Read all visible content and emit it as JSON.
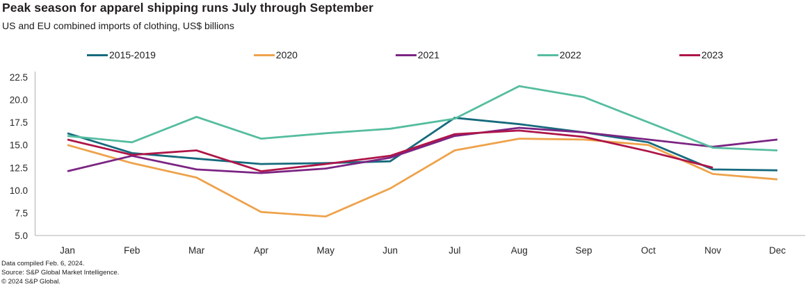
{
  "header": {
    "title": "Peak season for apparel shipping runs July through September",
    "subtitle": "US and EU combined imports of clothing, US$ billions"
  },
  "footer": {
    "line1": "Data compiled Feb. 6, 2024.",
    "line2": "Source: S&P Global Market Intelligence.",
    "line3": "© 2024 S&P Global."
  },
  "chart_data": {
    "type": "line",
    "title": "Peak season for apparel shipping runs July through September",
    "subtitle": "US and EU combined imports of clothing, US$ billions",
    "categories": [
      "Jan",
      "Feb",
      "Mar",
      "Apr",
      "May",
      "Jun",
      "Jul",
      "Aug",
      "Sep",
      "Oct",
      "Nov",
      "Dec"
    ],
    "ylim": [
      5.0,
      22.5
    ],
    "yticks": [
      5.0,
      7.5,
      10.0,
      12.5,
      15.0,
      17.5,
      20.0,
      22.5
    ],
    "grid": false,
    "legend_position": "top",
    "axis_color": "#bfbfbf",
    "tick_label_color": "#262626",
    "series": [
      {
        "name": "2015-2019",
        "color": "#166a7d",
        "values": [
          16.3,
          14.1,
          13.5,
          12.9,
          13.0,
          13.2,
          18.0,
          17.3,
          16.4,
          15.3,
          12.3,
          12.2
        ]
      },
      {
        "name": "2020",
        "color": "#eea24b",
        "values": [
          15.0,
          13.0,
          11.4,
          7.6,
          7.1,
          10.2,
          14.4,
          15.7,
          15.6,
          15.0,
          11.8,
          11.2
        ]
      },
      {
        "name": "2021",
        "color": "#7b2483",
        "values": [
          12.1,
          13.8,
          12.3,
          11.9,
          12.4,
          13.6,
          16.0,
          16.9,
          16.4,
          15.6,
          14.8,
          15.6
        ]
      },
      {
        "name": "2022",
        "color": "#55bd9f",
        "values": [
          16.0,
          15.3,
          18.1,
          15.7,
          16.3,
          16.8,
          17.9,
          21.5,
          20.3,
          17.5,
          14.7,
          14.4
        ]
      },
      {
        "name": "2023",
        "color": "#ae1548",
        "values": [
          15.6,
          13.9,
          14.4,
          12.1,
          12.9,
          13.8,
          16.2,
          16.6,
          15.9,
          14.3,
          12.5,
          null
        ]
      }
    ]
  }
}
